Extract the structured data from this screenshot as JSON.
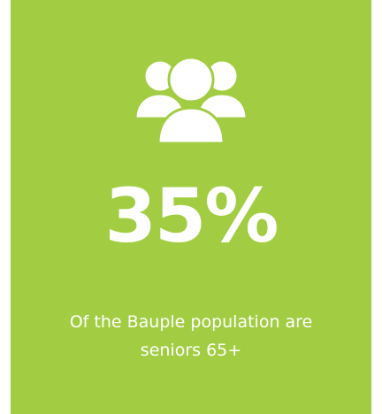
{
  "card": {
    "background_color": "#a2cd42",
    "icon": "people-group-icon",
    "stat_value": "35%",
    "caption": "Of the Bauple population are seniors 65+"
  }
}
